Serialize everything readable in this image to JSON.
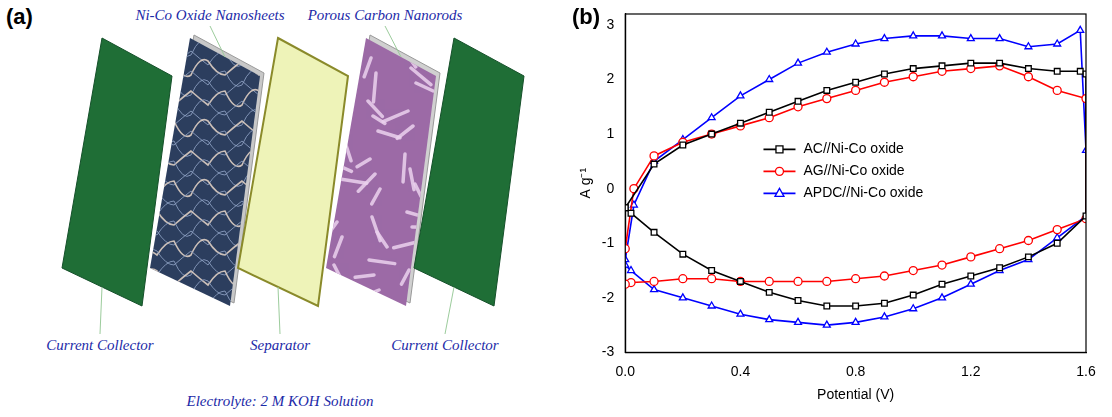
{
  "panel_labels": [
    "(a)",
    "(b)"
  ],
  "diagram": {
    "layers": [
      "Current Collector",
      "Ni-Co Oxide Nanosheets",
      "Separator",
      "Porous Carbon Nanorods",
      "Current Collector"
    ],
    "electrolyte": "Electrolyte: 2 M KOH Solution"
  },
  "chart_data": {
    "type": "line",
    "x_label": "Potential (V)",
    "y_label": "A g⁻¹",
    "xlim": [
      0,
      1.6
    ],
    "xticks": [
      {
        "value": 0,
        "label": "0.0"
      },
      0.4,
      0.8,
      1.2,
      1.6
    ],
    "ylim": [
      -3,
      3.2
    ],
    "yticks": [
      -3,
      -2,
      -1,
      0,
      1,
      2,
      3
    ],
    "grid": false,
    "legend": "center",
    "series": [
      {
        "name": "AC//Ni-Co oxide",
        "color": "#000000",
        "marker": "square",
        "x": [
          0,
          0.1,
          0.2,
          0.3,
          0.4,
          0.5,
          0.6,
          0.7,
          0.8,
          0.9,
          1.0,
          1.1,
          1.2,
          1.3,
          1.4,
          1.5,
          1.58,
          1.6,
          1.6,
          1.5,
          1.4,
          1.3,
          1.2,
          1.1,
          1.0,
          0.9,
          0.8,
          0.7,
          0.6,
          0.5,
          0.4,
          0.3,
          0.2,
          0.1,
          0.02,
          0
        ],
        "values": [
          -0.35,
          0.45,
          0.8,
          1.0,
          1.2,
          1.4,
          1.6,
          1.8,
          1.95,
          2.1,
          2.2,
          2.25,
          2.3,
          2.3,
          2.2,
          2.15,
          2.15,
          2.1,
          -0.5,
          -1.0,
          -1.25,
          -1.45,
          -1.6,
          -1.75,
          -1.95,
          -2.1,
          -2.15,
          -2.15,
          -2.05,
          -1.9,
          -1.7,
          -1.5,
          -1.2,
          -0.8,
          -0.45,
          -0.35
        ]
      },
      {
        "name": "AG//Ni-Co oxide",
        "color": "#ff0000",
        "marker": "circle",
        "x": [
          0,
          0.03,
          0.1,
          0.2,
          0.3,
          0.4,
          0.5,
          0.6,
          0.7,
          0.8,
          0.9,
          1.0,
          1.1,
          1.2,
          1.3,
          1.4,
          1.5,
          1.6,
          1.6,
          1.5,
          1.4,
          1.3,
          1.2,
          1.1,
          1.0,
          0.9,
          0.8,
          0.7,
          0.6,
          0.5,
          0.4,
          0.3,
          0.2,
          0.1,
          0.02,
          0
        ],
        "values": [
          -1.1,
          0.0,
          0.6,
          0.85,
          1.0,
          1.15,
          1.3,
          1.5,
          1.65,
          1.8,
          1.95,
          2.05,
          2.15,
          2.2,
          2.25,
          2.05,
          1.8,
          1.65,
          -0.55,
          -0.75,
          -0.95,
          -1.1,
          -1.25,
          -1.4,
          -1.5,
          -1.6,
          -1.65,
          -1.7,
          -1.7,
          -1.7,
          -1.7,
          -1.65,
          -1.65,
          -1.7,
          -1.72,
          -1.75
        ]
      },
      {
        "name": "APDC//Ni-Co oxide",
        "color": "#0000ff",
        "marker": "triangle",
        "x": [
          0,
          0.03,
          0.1,
          0.2,
          0.3,
          0.4,
          0.5,
          0.6,
          0.7,
          0.8,
          0.9,
          1.0,
          1.1,
          1.2,
          1.3,
          1.4,
          1.5,
          1.58,
          1.6,
          1.6,
          1.5,
          1.4,
          1.3,
          1.2,
          1.1,
          1.0,
          0.9,
          0.8,
          0.7,
          0.6,
          0.5,
          0.4,
          0.3,
          0.2,
          0.1,
          0.02,
          0
        ],
        "values": [
          -1.3,
          -0.3,
          0.5,
          0.9,
          1.3,
          1.7,
          2.0,
          2.3,
          2.5,
          2.65,
          2.75,
          2.8,
          2.8,
          2.75,
          2.75,
          2.6,
          2.65,
          2.9,
          0.7,
          -0.5,
          -0.9,
          -1.3,
          -1.5,
          -1.75,
          -2.0,
          -2.2,
          -2.35,
          -2.45,
          -2.5,
          -2.45,
          -2.4,
          -2.3,
          -2.15,
          -2.0,
          -1.85,
          -1.5,
          -1.4
        ]
      }
    ]
  }
}
